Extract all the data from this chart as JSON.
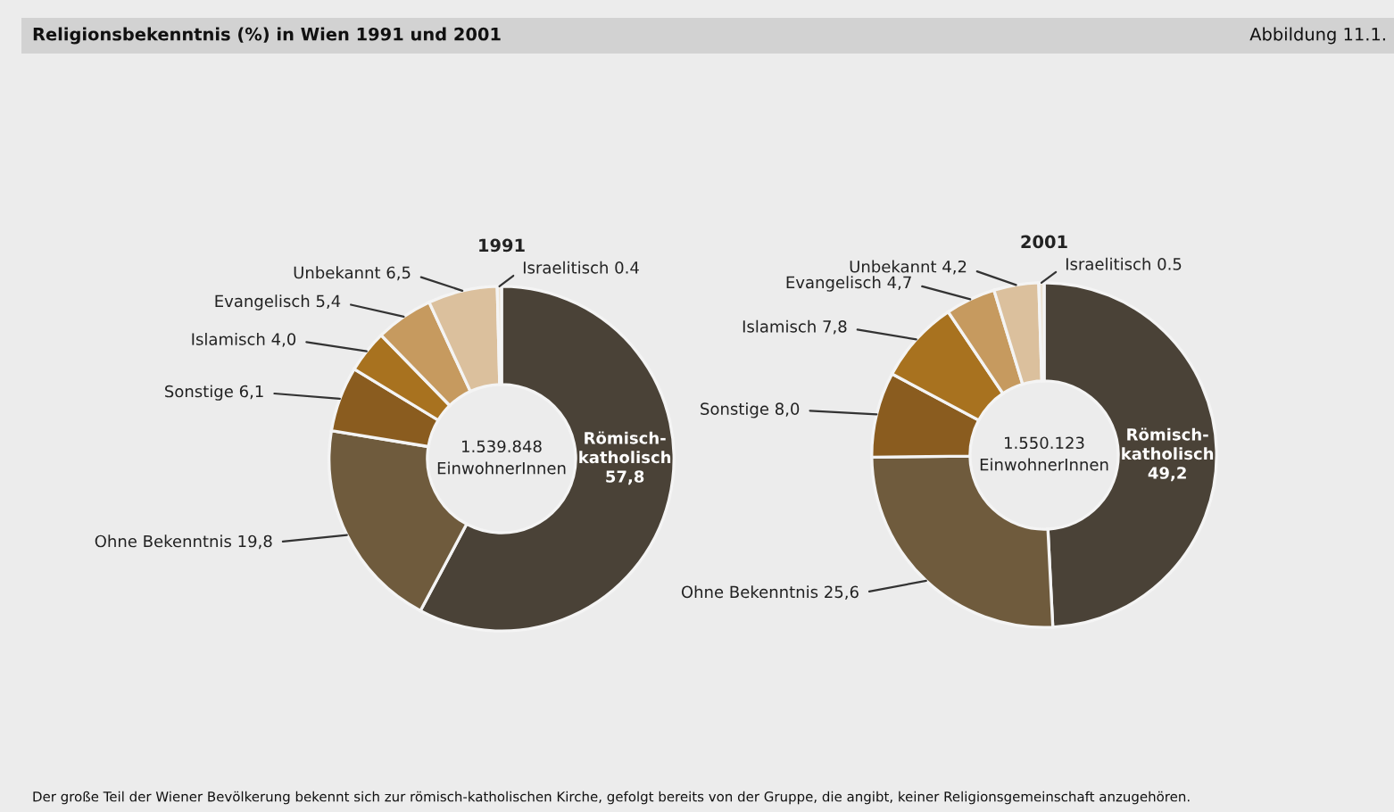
{
  "chart_data": [
    {
      "type": "donut",
      "title": "1991",
      "categories": [
        "Römisch-katholisch",
        "Ohne Bekenntnis",
        "Sonstige",
        "Islamisch",
        "Evangelisch",
        "Unbekannt",
        "Israelitisch"
      ],
      "values": [
        57.8,
        19.8,
        6.1,
        4.0,
        5.4,
        6.5,
        0.4
      ],
      "value_labels": [
        "57,8",
        "19,8",
        "6,1",
        "4,0",
        "5,4",
        "6,5",
        "0.4"
      ],
      "colors": [
        "#4a4237",
        "#6f5b3d",
        "#8a5c1f",
        "#a8721f",
        "#c69a5f",
        "#dbc09d",
        "#ede3d3"
      ],
      "annotations": [
        "Religionsbekenntnis (%) in Wien 1991 und 2001",
        "Abbildung 11.1.",
        "Der große Teil der Wiener Bevölkerung bekennt sich zur römisch-katholischen Kirche, gefolgt bereits von der Gruppe, die angibt, keiner Religionsgemeinschaft anzugehören.",
        "1.539.848\nEinwohnerInnen"
      ]
    },
    {
      "type": "donut",
      "title": "2001",
      "categories": [
        "Römisch-katholisch",
        "Ohne Bekenntnis",
        "Sonstige",
        "Islamisch",
        "Evangelisch",
        "Unbekannt",
        "Israelitisch"
      ],
      "values": [
        49.2,
        25.6,
        8.0,
        7.8,
        4.7,
        4.2,
        0.5
      ],
      "value_labels": [
        "49,2",
        "25,6",
        "8,0",
        "7,8",
        "4,7",
        "4,2",
        "0.5"
      ],
      "colors": [
        "#4a4237",
        "#6f5b3d",
        "#8a5c1f",
        "#a8721f",
        "#c69a5f",
        "#dbc09d",
        "#ede3d3"
      ],
      "annotations": [
        "1.550.123\nEinwohnerInnen"
      ]
    }
  ]
}
